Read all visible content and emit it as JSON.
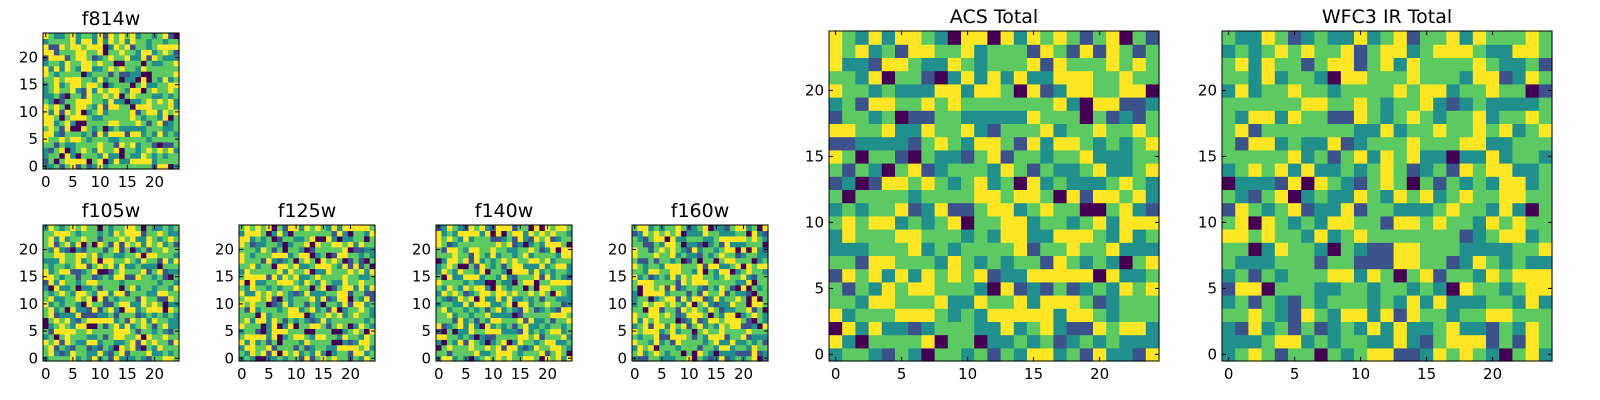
{
  "palette": [
    "#440154",
    "#3b528b",
    "#21908d",
    "#5dc963",
    "#fde725"
  ],
  "chart_data": [
    {
      "id": "f814w",
      "type": "heatmap",
      "title": "f814w",
      "grid": [
        25,
        25
      ],
      "xticks": [
        0,
        5,
        10,
        15,
        20
      ],
      "yticks": [
        0,
        5,
        10,
        15,
        20
      ],
      "seed": 11,
      "low_value_fraction": 0.06
    },
    {
      "id": "f105w",
      "type": "heatmap",
      "title": "f105w",
      "grid": [
        25,
        25
      ],
      "xticks": [
        0,
        5,
        10,
        15,
        20
      ],
      "yticks": [
        0,
        5,
        10,
        15,
        20
      ],
      "seed": 23,
      "low_value_fraction": 0.04
    },
    {
      "id": "f125w",
      "type": "heatmap",
      "title": "f125w",
      "grid": [
        25,
        25
      ],
      "xticks": [
        0,
        5,
        10,
        15,
        20
      ],
      "yticks": [
        0,
        5,
        10,
        15,
        20
      ],
      "seed": 37,
      "low_value_fraction": 0.07
    },
    {
      "id": "f140w",
      "type": "heatmap",
      "title": "f140w",
      "grid": [
        25,
        25
      ],
      "xticks": [
        0,
        5,
        10,
        15,
        20
      ],
      "yticks": [
        0,
        5,
        10,
        15,
        20
      ],
      "seed": 41,
      "low_value_fraction": 0.06
    },
    {
      "id": "f160w",
      "type": "heatmap",
      "title": "f160w",
      "grid": [
        25,
        25
      ],
      "xticks": [
        0,
        5,
        10,
        15,
        20
      ],
      "yticks": [
        0,
        5,
        10,
        15,
        20
      ],
      "seed": 53,
      "low_value_fraction": 0.07
    },
    {
      "id": "acs-total",
      "type": "heatmap",
      "title": "ACS Total",
      "grid": [
        25,
        25
      ],
      "xticks": [
        0,
        5,
        10,
        15,
        20
      ],
      "yticks": [
        0,
        5,
        10,
        15,
        20
      ],
      "seed": 67,
      "low_value_fraction": 0.03
    },
    {
      "id": "wfc3-ir-total",
      "type": "heatmap",
      "title": "WFC3 IR Total",
      "grid": [
        25,
        25
      ],
      "xticks": [
        0,
        5,
        10,
        15,
        20
      ],
      "yticks": [
        0,
        5,
        10,
        15,
        20
      ],
      "seed": 79,
      "low_value_fraction": 0.03
    }
  ]
}
